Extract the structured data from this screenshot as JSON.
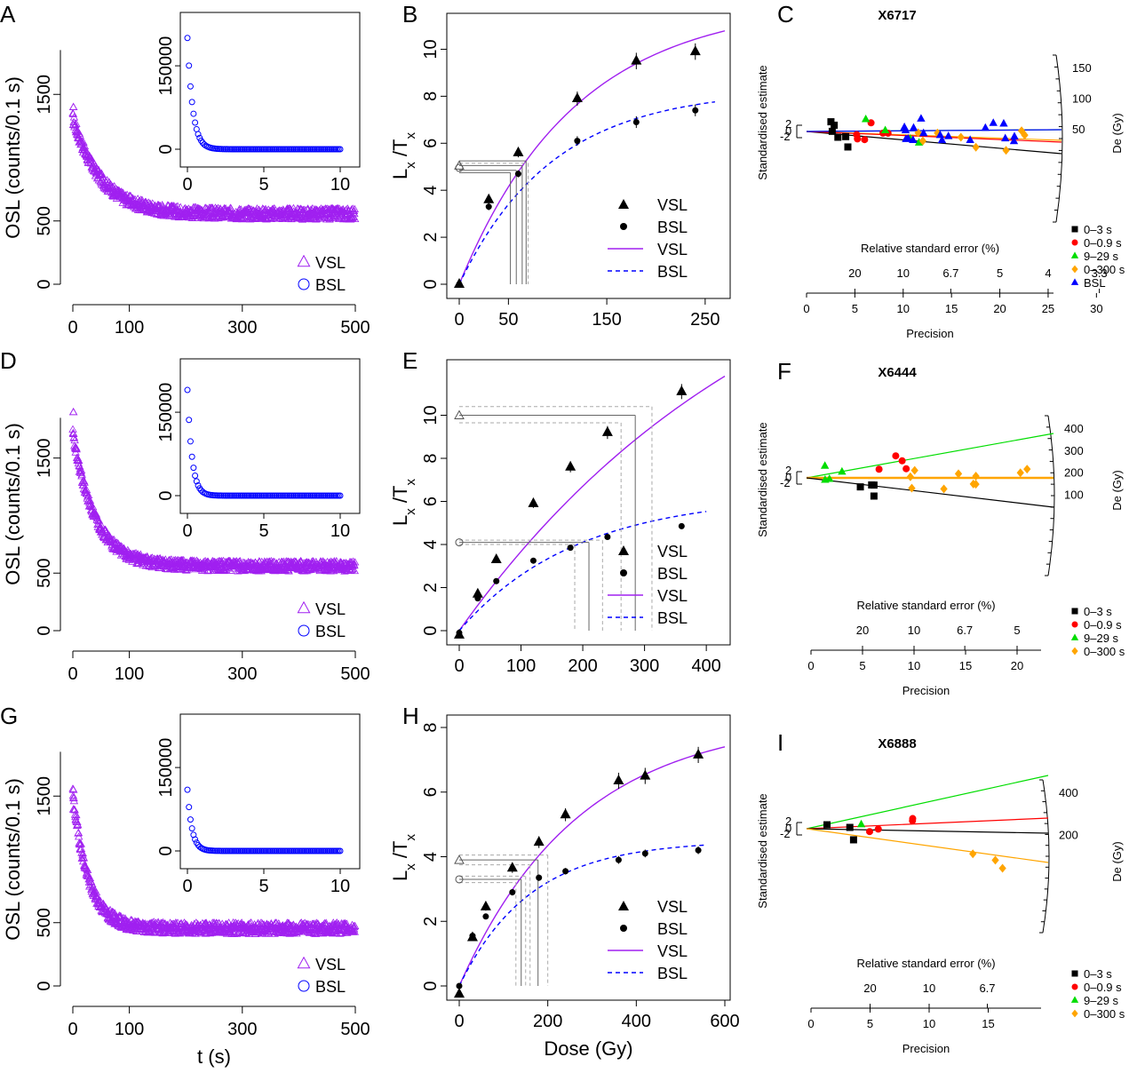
{
  "figure": {
    "rows": [
      {
        "decay": {
          "letter": "A",
          "curve": {
            "A": 760,
            "tau": 50,
            "C": 555
          },
          "ylim": [
            0,
            2000
          ],
          "first_point": 1400
        },
        "growth": {
          "letter": "B",
          "xlim": [
            0,
            270
          ],
          "ylim": [
            0,
            11
          ],
          "xticks": [
            "0",
            "50",
            "150",
            "250"
          ],
          "xtick_vals": [
            0,
            50,
            150,
            250
          ],
          "yticks": [
            "0",
            "2",
            "4",
            "6",
            "8",
            "10"
          ],
          "ytick_vals": [
            0,
            2,
            4,
            6,
            8,
            10
          ]
        },
        "radial": {
          "letter": "C",
          "sample": "X6717"
        }
      },
      {
        "decay": {
          "letter": "D",
          "curve": {
            "A": 1150,
            "tau": 40,
            "C": 560
          },
          "ylim": [
            0,
            2200
          ],
          "first_point": 1900
        },
        "growth": {
          "letter": "E",
          "xlim": [
            0,
            430
          ],
          "ylim": [
            0,
            12
          ],
          "xticks": [
            "0",
            "100",
            "200",
            "300",
            "400"
          ],
          "xtick_vals": [
            0,
            100,
            200,
            300,
            400
          ],
          "yticks": [
            "0",
            "2",
            "4",
            "6",
            "8",
            "10"
          ],
          "ytick_vals": [
            0,
            2,
            4,
            6,
            8,
            10
          ]
        },
        "radial": {
          "letter": "F",
          "sample": "X6444"
        }
      },
      {
        "decay": {
          "letter": "G",
          "curve": {
            "A": 1060,
            "tau": 28,
            "C": 455
          },
          "ylim": [
            0,
            2000
          ],
          "first_point": 1550
        },
        "growth": {
          "letter": "H",
          "xlim": [
            0,
            600
          ],
          "ylim": [
            0,
            8
          ],
          "xticks": [
            "0",
            "200",
            "400",
            "600"
          ],
          "xtick_vals": [
            0,
            200,
            400,
            600
          ],
          "yticks": [
            "0",
            "2",
            "4",
            "6",
            "8"
          ],
          "ytick_vals": [
            0,
            2,
            4,
            6,
            8
          ]
        },
        "radial": {
          "letter": "I",
          "sample": "X6888"
        }
      }
    ]
  },
  "chart_data": [
    {
      "type": "scatter",
      "panel": "A",
      "xlabel": "",
      "ylabel": "OSL (counts/0.1 s)",
      "xticks": [
        "0",
        "100",
        "300",
        "500"
      ],
      "yticks": [
        "0",
        "500",
        "1500"
      ],
      "xlim": [
        0,
        500
      ],
      "ylim": [
        0,
        2000
      ],
      "series": [
        {
          "name": "VSL",
          "marker": "open-triangle",
          "color": "#a020f0"
        }
      ],
      "inset": {
        "series": [
          {
            "name": "BSL",
            "marker": "open-circle",
            "color": "#0000ff"
          }
        ],
        "xticks": [
          "0",
          "5",
          "10"
        ],
        "yticks": [
          "0",
          "150000"
        ],
        "xlim": [
          0,
          10
        ],
        "ylim": [
          0,
          230000
        ],
        "peak": 200000,
        "tau": 0.35
      },
      "legend": [
        "VSL",
        "BSL"
      ]
    },
    {
      "type": "scatter",
      "panel": "B",
      "xlabel": "",
      "ylabel": "Lx /Tx",
      "series": [
        {
          "name": "VSL",
          "x": [
            0,
            30,
            60,
            120,
            180,
            240
          ],
          "y": [
            0,
            3.6,
            5.6,
            7.9,
            9.5,
            9.9
          ],
          "err": [
            0.1,
            0.2,
            0.2,
            0.3,
            0.35,
            0.35
          ]
        },
        {
          "name": "BSL",
          "x": [
            0,
            30,
            60,
            120,
            180,
            240
          ],
          "y": [
            0,
            3.3,
            4.7,
            6.1,
            6.9,
            7.4
          ],
          "err": [
            0.1,
            0.15,
            0.15,
            0.2,
            0.25,
            0.25
          ]
        }
      ],
      "fits": [
        {
          "name": "VSL",
          "style": "solid",
          "color": "#a020f0",
          "Imax": 12.0,
          "D0": 118,
          "xmax": 270
        },
        {
          "name": "BSL",
          "style": "dashed",
          "color": "#0000ff",
          "Imax": 8.3,
          "D0": 95,
          "xmax": 260
        }
      ],
      "natural": {
        "vsl": 5.05,
        "bsl": 4.95
      },
      "projections": [
        {
          "y": 5.25,
          "x": 68,
          "c": "#666"
        },
        {
          "y": 5.05,
          "x": 64,
          "c": "#666"
        },
        {
          "y": 4.85,
          "x": 58,
          "c": "#666"
        },
        {
          "y": 4.75,
          "x": 52,
          "c": "#666"
        },
        {
          "y": 5.15,
          "x": 70,
          "c": "#aaa"
        }
      ],
      "legend": [
        "VSL",
        "BSL",
        "VSL",
        "BSL"
      ]
    },
    {
      "type": "scatter",
      "panel": "C",
      "title": "X6717",
      "xlabel": "Precision",
      "ylabel": "Standardised estimate",
      "top_axis_label": "Relative standard error (%)",
      "precision_ticks": [
        "0",
        "5",
        "10",
        "15",
        "20",
        "25",
        "30"
      ],
      "rse_ticks": [
        "20",
        "10",
        "6.7",
        "5",
        "4",
        "3.3"
      ],
      "right_axis_label": "De (Gy)",
      "right_ticks": [
        "50",
        "100",
        "150"
      ],
      "legend": [
        {
          "label": "0–3 s",
          "color": "#000000",
          "marker": "square"
        },
        {
          "label": "0–0.9 s",
          "color": "#ff0000",
          "marker": "circle"
        },
        {
          "label": "9–29 s",
          "color": "#00dd00",
          "marker": "triangle"
        },
        {
          "label": "0–300 s",
          "color": "#ffa500",
          "marker": "diamond"
        },
        {
          "label": "BSL",
          "color": "#0000ff",
          "marker": "triangle"
        }
      ]
    },
    {
      "type": "scatter",
      "panel": "D",
      "ylabel": "OSL (counts/0.1 s)",
      "xticks": [
        "0",
        "100",
        "300",
        "500"
      ],
      "yticks": [
        "0",
        "500",
        "1500"
      ],
      "xlim": [
        0,
        500
      ],
      "ylim": [
        0,
        2200
      ],
      "inset": {
        "xticks": [
          "0",
          "5",
          "10"
        ],
        "yticks": [
          "0",
          "150000"
        ],
        "xlim": [
          0,
          10
        ],
        "ylim": [
          0,
          230000
        ],
        "peak": 190000,
        "tau": 0.3
      },
      "legend": [
        "VSL",
        "BSL"
      ]
    },
    {
      "type": "scatter",
      "panel": "E",
      "ylabel": "Lx /Tx",
      "series": [
        {
          "name": "VSL",
          "x": [
            0,
            30,
            60,
            120,
            180,
            240,
            360
          ],
          "y": [
            -0.2,
            1.7,
            3.3,
            5.9,
            7.6,
            9.2,
            11.1
          ],
          "err": [
            0.1,
            0.15,
            0.15,
            0.2,
            0.25,
            0.3,
            0.35
          ]
        },
        {
          "name": "BSL",
          "x": [
            0,
            30,
            60,
            120,
            180,
            240,
            360
          ],
          "y": [
            -0.1,
            1.5,
            2.3,
            3.25,
            3.85,
            4.35,
            4.85
          ],
          "err": [
            0.05,
            0.08,
            0.08,
            0.1,
            0.1,
            0.1,
            0.12
          ]
        }
      ],
      "fits": [
        {
          "name": "VSL",
          "style": "solid",
          "color": "#a020f0",
          "Imax": 21,
          "D0": 520,
          "xmax": 430
        },
        {
          "name": "BSL",
          "style": "dashed",
          "color": "#0000ff",
          "Imax": 6.3,
          "D0": 190,
          "xmax": 400
        }
      ],
      "natural": {
        "vsl": 10.0,
        "bsl": 4.1
      },
      "projections": [
        {
          "y": 10.4,
          "x": 312,
          "c": "#aaa"
        },
        {
          "y": 10.0,
          "x": 285,
          "c": "#666"
        },
        {
          "y": 9.65,
          "x": 262,
          "c": "#aaa"
        },
        {
          "y": 4.2,
          "x": 232,
          "c": "#aaa"
        },
        {
          "y": 4.1,
          "x": 210,
          "c": "#666"
        },
        {
          "y": 4.0,
          "x": 187,
          "c": "#aaa"
        }
      ],
      "legend": [
        "VSL",
        "BSL",
        "VSL",
        "BSL"
      ]
    },
    {
      "type": "scatter",
      "panel": "F",
      "title": "X6444",
      "xlabel": "Precision",
      "ylabel": "Standardised estimate",
      "top_axis_label": "Relative standard error (%)",
      "precision_ticks": [
        "0",
        "5",
        "10",
        "15",
        "20"
      ],
      "rse_ticks": [
        "20",
        "10",
        "6.7",
        "5"
      ],
      "right_axis_label": "De (Gy)",
      "right_ticks": [
        "100",
        "200",
        "300",
        "400"
      ],
      "legend": [
        {
          "label": "0–3 s",
          "color": "#000000",
          "marker": "square"
        },
        {
          "label": "0–0.9 s",
          "color": "#ff0000",
          "marker": "circle"
        },
        {
          "label": "9–29 s",
          "color": "#00dd00",
          "marker": "triangle"
        },
        {
          "label": "0–300 s",
          "color": "#ffa500",
          "marker": "diamond"
        }
      ]
    },
    {
      "type": "scatter",
      "panel": "G",
      "xlabel": "t (s)",
      "ylabel": "OSL (counts/0.1 s)",
      "xticks": [
        "0",
        "100",
        "300",
        "500"
      ],
      "yticks": [
        "0",
        "500",
        "1500"
      ],
      "xlim": [
        0,
        500
      ],
      "ylim": [
        0,
        2000
      ],
      "inset": {
        "xticks": [
          "0",
          "5",
          "10"
        ],
        "yticks": [
          "0",
          "150000"
        ],
        "xlim": [
          0,
          10
        ],
        "ylim": [
          0,
          230000
        ],
        "peak": 110000,
        "tau": 0.3
      },
      "legend": [
        "VSL",
        "BSL"
      ]
    },
    {
      "type": "scatter",
      "panel": "H",
      "xlabel": "Dose (Gy)",
      "ylabel": "Lx /Tx",
      "series": [
        {
          "name": "VSL",
          "x": [
            0,
            30,
            60,
            120,
            180,
            240,
            360,
            420,
            540
          ],
          "y": [
            -0.25,
            1.5,
            2.45,
            3.65,
            4.45,
            5.3,
            6.35,
            6.5,
            7.15
          ],
          "err": [
            0.05,
            0.1,
            0.12,
            0.15,
            0.18,
            0.2,
            0.25,
            0.25,
            0.25
          ]
        },
        {
          "name": "BSL",
          "x": [
            0,
            30,
            60,
            120,
            180,
            240,
            360,
            420,
            540
          ],
          "y": [
            0.0,
            1.55,
            2.15,
            2.9,
            3.35,
            3.55,
            3.9,
            4.1,
            4.2
          ],
          "err": [
            0.05,
            0.08,
            0.08,
            0.1,
            0.1,
            0.1,
            0.12,
            0.12,
            0.12
          ]
        }
      ],
      "fits": [
        {
          "name": "VSL",
          "style": "solid",
          "color": "#a020f0",
          "Imax": 8.3,
          "D0": 270,
          "xmax": 600
        },
        {
          "name": "BSL",
          "style": "dashed",
          "color": "#0000ff",
          "Imax": 4.5,
          "D0": 160,
          "xmax": 560
        }
      ],
      "natural": {
        "vsl": 3.9,
        "bsl": 3.3
      },
      "projections": [
        {
          "y": 4.05,
          "x": 200,
          "c": "#aaa"
        },
        {
          "y": 3.9,
          "x": 178,
          "c": "#666"
        },
        {
          "y": 3.75,
          "x": 160,
          "c": "#aaa"
        },
        {
          "y": 3.4,
          "x": 150,
          "c": "#aaa"
        },
        {
          "y": 3.3,
          "x": 140,
          "c": "#666"
        },
        {
          "y": 3.2,
          "x": 128,
          "c": "#aaa"
        }
      ],
      "legend": [
        "VSL",
        "BSL",
        "VSL",
        "BSL"
      ]
    },
    {
      "type": "scatter",
      "panel": "I",
      "title": "X6888",
      "xlabel": "Precision",
      "ylabel": "Standardised estimate",
      "top_axis_label": "Relative standard error (%)",
      "precision_ticks": [
        "0",
        "5",
        "10",
        "15"
      ],
      "rse_ticks": [
        "20",
        "10",
        "6.7"
      ],
      "right_axis_label": "De (Gy)",
      "right_ticks": [
        "200",
        "400"
      ],
      "legend": [
        {
          "label": "0–3 s",
          "color": "#000000",
          "marker": "square"
        },
        {
          "label": "0–0.9 s",
          "color": "#ff0000",
          "marker": "circle"
        },
        {
          "label": "9–29 s",
          "color": "#00dd00",
          "marker": "triangle"
        },
        {
          "label": "0–300 s",
          "color": "#ffa500",
          "marker": "diamond"
        }
      ]
    }
  ],
  "colors": {
    "vsl": "#a020f0",
    "bsl": "#0000ff",
    "black": "#000000",
    "red": "#ff0000",
    "green": "#00dd00",
    "orange": "#ffa500"
  }
}
